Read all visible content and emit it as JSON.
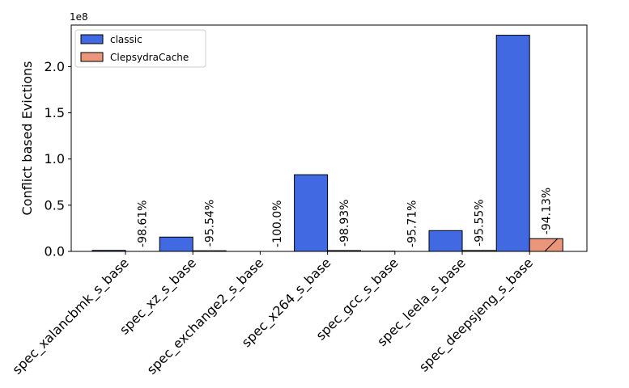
{
  "chart_data": {
    "type": "bar",
    "categories": [
      "spec_xalancbmk_s_base",
      "spec_xz_s_base",
      "spec_exchange2_s_base",
      "spec_x264_s_base",
      "spec_gcc_s_base",
      "spec_leela_s_base",
      "spec_deepsjeng_s_base"
    ],
    "series": [
      {
        "name": "classic",
        "values": [
          1100000,
          15500000,
          10000,
          83000000,
          300000,
          22500000,
          234000000
        ],
        "color": "#4169e1"
      },
      {
        "name": "ClepsydraCache",
        "values": [
          15000,
          700000,
          0,
          900000,
          13000,
          1000000,
          13800000
        ],
        "color": "#e9967a"
      }
    ],
    "annotations": [
      "-98.61%",
      "-95.54%",
      "-100.0%",
      "-98.93%",
      "-95.71%",
      "-95.55%",
      "-94.13%"
    ],
    "xlabel": "",
    "ylabel": "Conflict based Evictions",
    "scale_label": "1e8",
    "ylim": [
      0,
      245000000
    ],
    "yticks": [
      0,
      50000000,
      100000000,
      150000000,
      200000000
    ],
    "ytick_labels": [
      "0.0",
      "0.5",
      "1.0",
      "1.5",
      "2.0"
    ],
    "legend_position": "top-left",
    "grid": false
  }
}
